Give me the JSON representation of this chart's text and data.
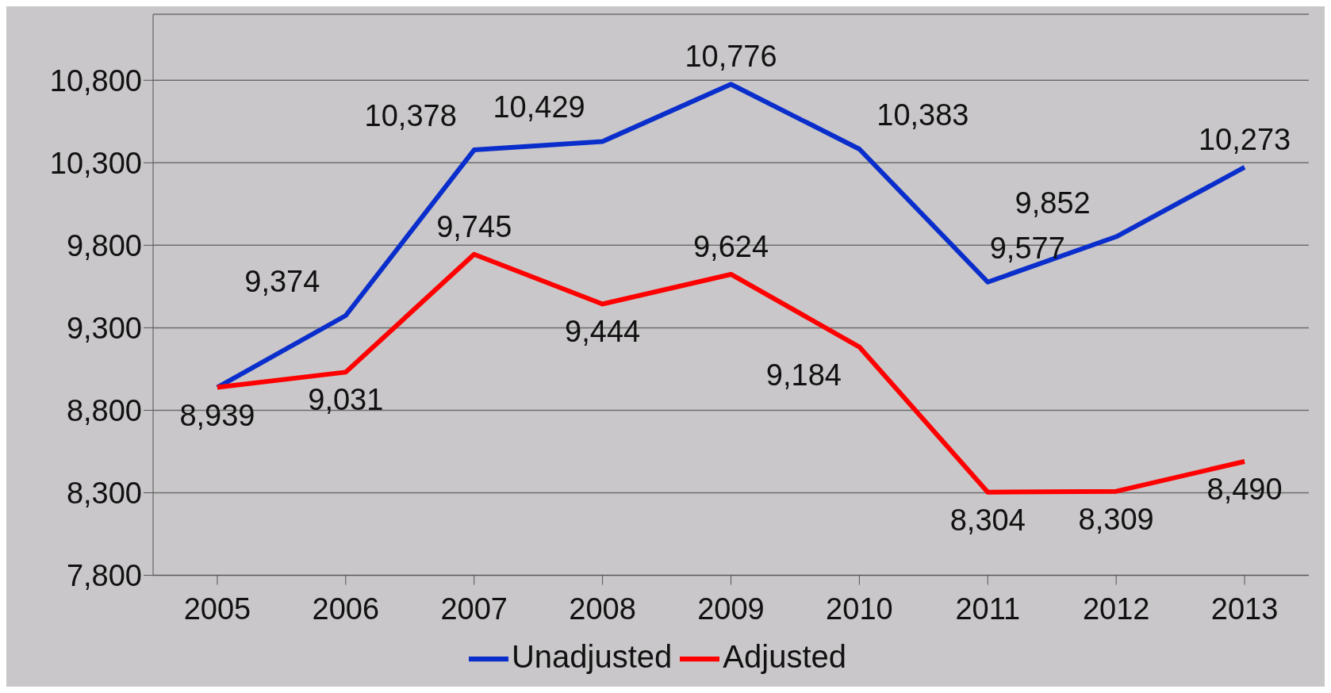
{
  "chart_data": {
    "type": "line",
    "categories": [
      "2005",
      "2006",
      "2007",
      "2008",
      "2009",
      "2010",
      "2011",
      "2012",
      "2013"
    ],
    "series": [
      {
        "name": "Unadjusted",
        "color": "#0a2ecc",
        "values": [
          8939,
          9374,
          10378,
          10429,
          10776,
          10383,
          9577,
          9852,
          10273
        ],
        "value_labels": [
          null,
          "9,374",
          "10,378",
          "10,429",
          "10,776",
          "10,383",
          "9,577",
          "9,852",
          "10,273"
        ]
      },
      {
        "name": "Adjusted",
        "color": "#ff0000",
        "values": [
          8939,
          9031,
          9745,
          9444,
          9624,
          9184,
          8304,
          8309,
          8490
        ],
        "value_labels": [
          "8,939",
          "9,031",
          "9,745",
          "9,444",
          "9,624",
          "9,184",
          "8,304",
          "8,309",
          "8,490"
        ]
      }
    ],
    "ylim": [
      7800,
      11200
    ],
    "yticks": [
      {
        "value": 7800,
        "label": "7,800"
      },
      {
        "value": 8300,
        "label": "8,300"
      },
      {
        "value": 8800,
        "label": "8,800"
      },
      {
        "value": 9300,
        "label": "9,300"
      },
      {
        "value": 9800,
        "label": "9,800"
      },
      {
        "value": 10300,
        "label": "10,300"
      },
      {
        "value": 10800,
        "label": "10,800"
      }
    ],
    "grid": "y",
    "legend": "bottom",
    "marker": "none",
    "line_style": "solid"
  }
}
